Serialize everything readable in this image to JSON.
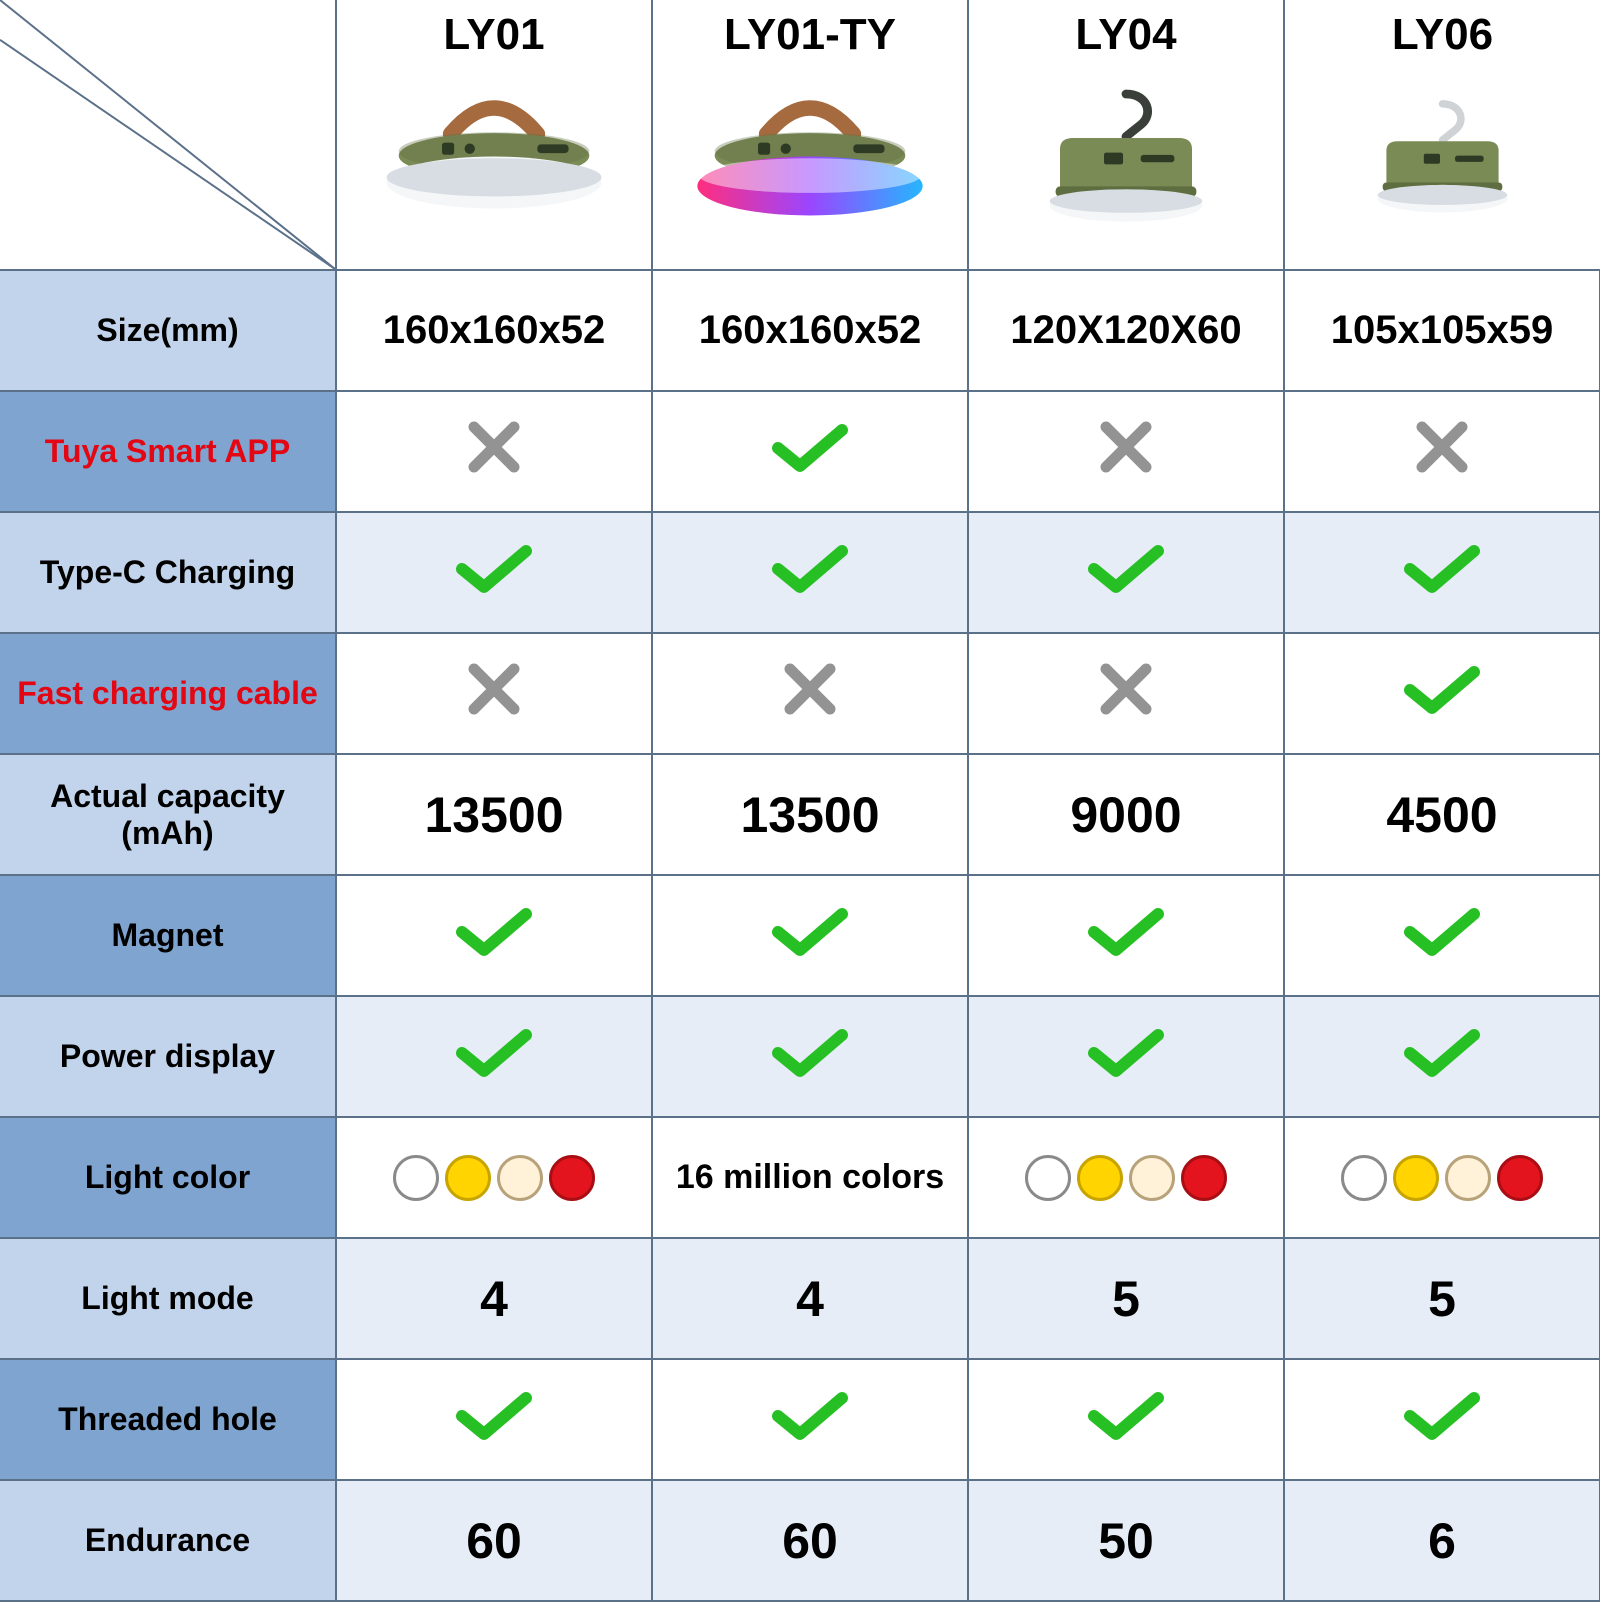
{
  "table": {
    "border_color": "#5b7089",
    "label_col_width": 336,
    "data_col_width": 316,
    "header_row_height": 270,
    "body_row_height": 121,
    "row_bg_dark": "#7ea4cf",
    "row_bg_light": "#c2d4eb",
    "cell_bg_light": "#e6edf7",
    "cell_bg_white": "#ffffff",
    "label_fontsize": 32,
    "product_name_fontsize": 44,
    "value_fontsize": 40,
    "value_big_fontsize": 50,
    "red_label_color": "#e30613",
    "check_color": "#27c024",
    "cross_color": "#939393"
  },
  "products": [
    {
      "id": "LY01",
      "variant": "handle"
    },
    {
      "id": "LY01-TY",
      "variant": "handle-rgb"
    },
    {
      "id": "LY04",
      "variant": "hook-dark"
    },
    {
      "id": "LY06",
      "variant": "hook-light"
    }
  ],
  "rows": [
    {
      "label": "Size(mm)",
      "label_bg": "light",
      "cell_bg": "white",
      "type": "text",
      "values": [
        "160x160x52",
        "160x160x52",
        "120X120X60",
        "105x105x59"
      ]
    },
    {
      "label": "Tuya Smart  APP",
      "label_bg": "dark",
      "cell_bg": "white",
      "label_red": true,
      "type": "bool",
      "values": [
        false,
        true,
        false,
        false
      ]
    },
    {
      "label": "Type-C Charging",
      "label_bg": "light",
      "cell_bg": "light",
      "type": "bool",
      "values": [
        true,
        true,
        true,
        true
      ]
    },
    {
      "label": "Fast charging cable",
      "label_bg": "dark",
      "cell_bg": "white",
      "label_red": true,
      "type": "bool",
      "values": [
        false,
        false,
        false,
        true
      ]
    },
    {
      "label": "Actual capacity (mAh)",
      "label_bg": "light",
      "cell_bg": "white",
      "type": "big",
      "values": [
        "13500",
        "13500",
        "9000",
        "4500"
      ]
    },
    {
      "label": "Magnet",
      "label_bg": "dark",
      "cell_bg": "white",
      "type": "bool",
      "values": [
        true,
        true,
        true,
        true
      ]
    },
    {
      "label": "Power display",
      "label_bg": "light",
      "cell_bg": "light",
      "type": "bool",
      "values": [
        true,
        true,
        true,
        true
      ]
    },
    {
      "label": "Light color",
      "label_bg": "dark",
      "cell_bg": "white",
      "type": "color",
      "values": [
        "dots",
        "16 million colors",
        "dots",
        "dots"
      ]
    },
    {
      "label": "Light mode",
      "label_bg": "light",
      "cell_bg": "light",
      "type": "big",
      "values": [
        "4",
        "4",
        "5",
        "5"
      ]
    },
    {
      "label": "Threaded hole",
      "label_bg": "dark",
      "cell_bg": "white",
      "type": "bool",
      "values": [
        true,
        true,
        true,
        true
      ]
    },
    {
      "label": "Endurance",
      "label_bg": "light",
      "cell_bg": "light",
      "type": "big",
      "values": [
        "60",
        "60",
        "50",
        "6"
      ]
    }
  ],
  "light_color_dots": [
    {
      "fill": "#ffffff",
      "stroke": "#8a8a8a"
    },
    {
      "fill": "#ffd400",
      "stroke": "#c7a400"
    },
    {
      "fill": "#fff2d9",
      "stroke": "#b8a27a"
    },
    {
      "fill": "#e3141d",
      "stroke": "#a80e14"
    }
  ],
  "lamp_colors": {
    "body": "#7b8b56",
    "body_dark": "#5f6e40",
    "lens": "#f4f6f8",
    "lens_shadow": "#d7dde3",
    "handle": "#a56a3e",
    "hook_dark": "#3a3f3a",
    "hook_light": "#cfd3d6",
    "rgb_left": "#ff2e7e",
    "rgb_mid": "#9a46ff",
    "rgb_right": "#25b6ff"
  }
}
